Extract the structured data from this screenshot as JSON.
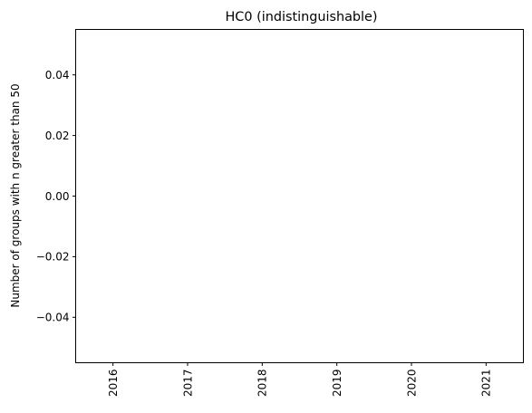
{
  "chart_data": {
    "type": "bar",
    "title": "HC0 (indistinguishable)",
    "xlabel": "",
    "ylabel": "Number of groups with n greater than 50",
    "categories": [
      "2016",
      "2017",
      "2018",
      "2019",
      "2020",
      "2021"
    ],
    "values": [
      0,
      0,
      0,
      0,
      0,
      0
    ],
    "ylim": [
      -0.055,
      0.055
    ],
    "yticks": [
      "−0.04",
      "−0.02",
      "0.00",
      "0.02",
      "0.04"
    ],
    "ytick_values": [
      -0.04,
      -0.02,
      0.0,
      0.02,
      0.04
    ],
    "xtick_rotation": "vertical",
    "grid": false,
    "legend": "none"
  }
}
